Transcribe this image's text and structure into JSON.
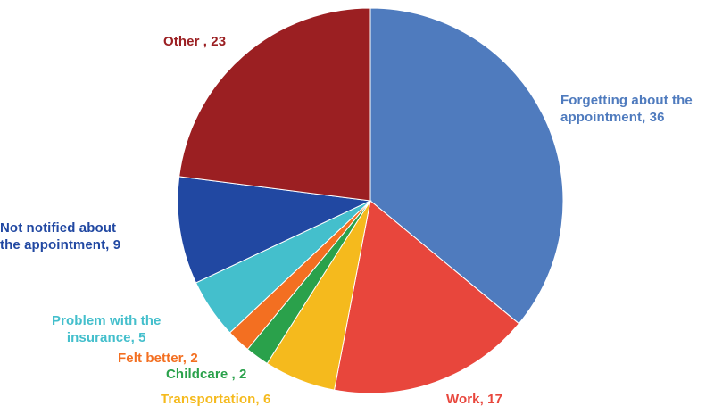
{
  "chart_data": {
    "type": "pie",
    "title": "",
    "slices": [
      {
        "label": "Forgetting about the\nappointment, 36",
        "name": "Forgetting about the appointment",
        "value": 36,
        "color": "#4F7BBE"
      },
      {
        "label": "Work, 17",
        "name": "Work",
        "value": 17,
        "color": "#E8463C"
      },
      {
        "label": "Transportation, 6",
        "name": "Transportation",
        "value": 6,
        "color": "#F5BA1D"
      },
      {
        "label": "Childcare , 2",
        "name": "Childcare",
        "value": 2,
        "color": "#2AA14B"
      },
      {
        "label": "Felt better, 2",
        "name": "Felt better",
        "value": 2,
        "color": "#F36F21"
      },
      {
        "label": "Problem with the\ninsurance, 5",
        "name": "Problem with the insurance",
        "value": 5,
        "color": "#44BFCC"
      },
      {
        "label": "Not notified about\nthe appointment, 9",
        "name": "Not notified about the appointment",
        "value": 9,
        "color": "#2148A2"
      },
      {
        "label": "Other , 23",
        "name": "Other",
        "value": 23,
        "color": "#9B1F22"
      }
    ],
    "label_colors": [
      "#4F7BBE",
      "#E8463C",
      "#F5BA1D",
      "#2AA14B",
      "#F36F21",
      "#44BFCC",
      "#2148A2",
      "#9B1F22"
    ],
    "start_angle": "12 o'clock",
    "direction": "clockwise",
    "legend": "none"
  }
}
